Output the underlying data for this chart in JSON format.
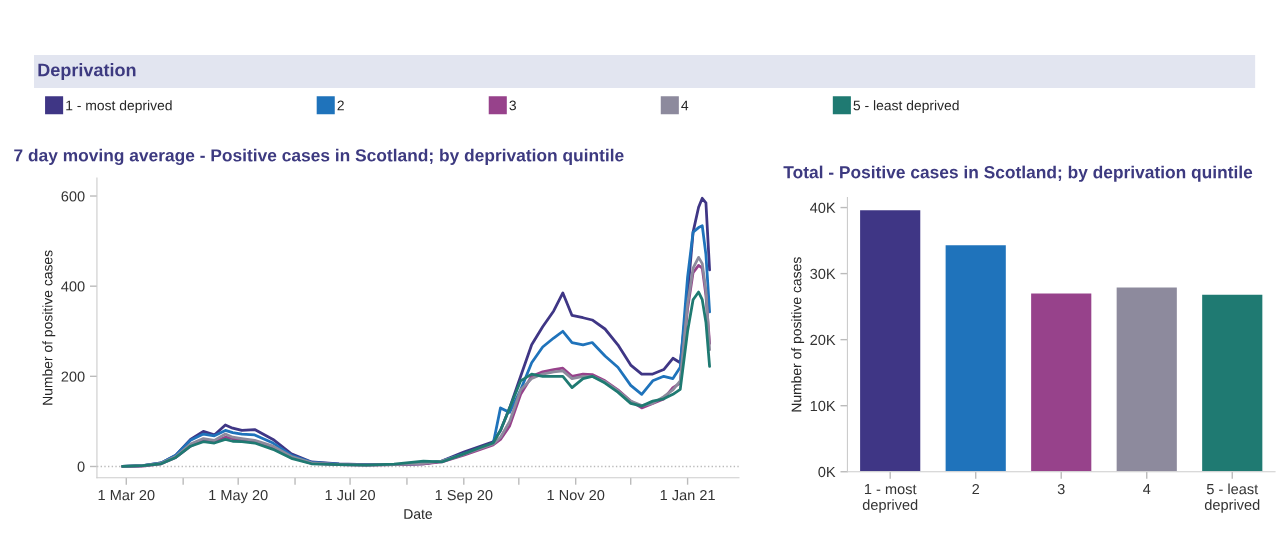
{
  "chart_data": [
    {
      "type": "line",
      "title": "7 day moving average - Positive cases in Scotland; by deprivation quintile",
      "xlabel": "Date",
      "ylabel": "Number of positive cases",
      "annotations": [
        "Deprivation"
      ],
      "x": [
        "2020-02-28",
        "2020-03-10",
        "2020-03-20",
        "2020-03-28",
        "2020-04-05",
        "2020-04-12",
        "2020-04-18",
        "2020-04-24",
        "2020-04-28",
        "2020-05-03",
        "2020-05-10",
        "2020-05-20",
        "2020-05-30",
        "2020-06-10",
        "2020-06-25",
        "2020-07-10",
        "2020-07-25",
        "2020-08-10",
        "2020-08-20",
        "2020-09-01",
        "2020-09-10",
        "2020-09-17",
        "2020-09-21",
        "2020-09-26",
        "2020-10-02",
        "2020-10-08",
        "2020-10-14",
        "2020-10-20",
        "2020-10-25",
        "2020-10-30",
        "2020-11-05",
        "2020-11-10",
        "2020-11-17",
        "2020-11-24",
        "2020-12-01",
        "2020-12-07",
        "2020-12-13",
        "2020-12-19",
        "2020-12-24",
        "2020-12-28",
        "2021-01-01",
        "2021-01-04",
        "2021-01-07",
        "2021-01-09",
        "2021-01-11",
        "2021-01-13"
      ],
      "series": [
        {
          "name": "1 - most deprived",
          "color": "#3f3685",
          "values": [
            0,
            2,
            8,
            25,
            60,
            78,
            70,
            92,
            85,
            80,
            82,
            60,
            28,
            10,
            6,
            4,
            4,
            6,
            12,
            32,
            45,
            55,
            80,
            130,
            200,
            270,
            310,
            345,
            385,
            335,
            330,
            325,
            305,
            270,
            225,
            205,
            205,
            215,
            240,
            230,
            380,
            520,
            575,
            595,
            585,
            436
          ]
        },
        {
          "name": "2",
          "color": "#1f73bb",
          "values": [
            0,
            2,
            8,
            25,
            58,
            72,
            68,
            80,
            75,
            72,
            70,
            52,
            25,
            9,
            5,
            4,
            4,
            7,
            12,
            28,
            40,
            50,
            130,
            120,
            170,
            230,
            265,
            285,
            300,
            275,
            270,
            275,
            245,
            220,
            180,
            160,
            190,
            200,
            195,
            220,
            420,
            520,
            530,
            534,
            470,
            343
          ]
        },
        {
          "name": "3",
          "color": "#97428b",
          "values": [
            0,
            1,
            6,
            20,
            45,
            60,
            55,
            65,
            62,
            58,
            55,
            40,
            20,
            7,
            4,
            3,
            4,
            6,
            10,
            25,
            38,
            48,
            60,
            90,
            160,
            200,
            210,
            215,
            218,
            200,
            205,
            204,
            190,
            170,
            145,
            130,
            140,
            150,
            175,
            185,
            350,
            430,
            446,
            440,
            380,
            273
          ]
        },
        {
          "name": "4",
          "color": "#8d8a9d",
          "values": [
            0,
            2,
            7,
            22,
            50,
            62,
            58,
            72,
            65,
            62,
            58,
            45,
            22,
            8,
            4,
            3,
            4,
            7,
            12,
            27,
            40,
            50,
            65,
            100,
            170,
            195,
            205,
            210,
            212,
            195,
            200,
            200,
            188,
            168,
            145,
            135,
            140,
            155,
            170,
            190,
            360,
            440,
            464,
            450,
            390,
            259
          ]
        },
        {
          "name": "5 - least deprived",
          "color": "#1f7a72",
          "values": [
            0,
            2,
            6,
            20,
            45,
            55,
            52,
            60,
            56,
            55,
            52,
            38,
            18,
            6,
            4,
            3,
            5,
            12,
            10,
            28,
            42,
            52,
            80,
            130,
            190,
            205,
            200,
            200,
            200,
            175,
            195,
            200,
            185,
            165,
            140,
            134,
            145,
            150,
            160,
            171,
            300,
            370,
            387,
            370,
            320,
            222
          ]
        }
      ],
      "xlim": [
        "2020-02-14",
        "2021-01-29"
      ],
      "xticks": [
        {
          "value": "2020-03-01",
          "label": "1 Mar 20"
        },
        {
          "value": "2020-04-01",
          "label": null
        },
        {
          "value": "2020-05-01",
          "label": "1 May 20"
        },
        {
          "value": "2020-06-01",
          "label": null
        },
        {
          "value": "2020-07-01",
          "label": "1 Jul 20"
        },
        {
          "value": "2020-08-01",
          "label": null
        },
        {
          "value": "2020-09-01",
          "label": "1 Sep 20"
        },
        {
          "value": "2020-10-01",
          "label": null
        },
        {
          "value": "2020-11-01",
          "label": "1 Nov 20"
        },
        {
          "value": "2020-12-01",
          "label": null
        },
        {
          "value": "2021-01-01",
          "label": "1 Jan 21"
        }
      ],
      "ylim": [
        -25,
        640
      ],
      "yticks": [
        0,
        200,
        400,
        600
      ],
      "ref_lines": [
        {
          "axis": "y",
          "value": 0,
          "color": "#bbbbbb",
          "line_style": "dotted"
        }
      ],
      "legend": "top",
      "grid": false
    },
    {
      "type": "bar",
      "title": "Total - Positive cases in Scotland; by deprivation quintile",
      "ylabel": "Number of positive cases",
      "categories": [
        "1 - most deprived",
        "2",
        "3",
        "4",
        "5 - least deprived"
      ],
      "values": [
        39700,
        34400,
        27100,
        28000,
        26900
      ],
      "colors": [
        "#3f3685",
        "#1f73bb",
        "#97428b",
        "#8d8a9d",
        "#1f7a72"
      ],
      "ylim": [
        0,
        41500
      ],
      "yticks": [
        {
          "value": 0,
          "label": "0K"
        },
        {
          "value": 10000,
          "label": "10K"
        },
        {
          "value": 20000,
          "label": "20K"
        },
        {
          "value": 30000,
          "label": "30K"
        },
        {
          "value": 40000,
          "label": "40K"
        }
      ],
      "grid": false
    }
  ]
}
